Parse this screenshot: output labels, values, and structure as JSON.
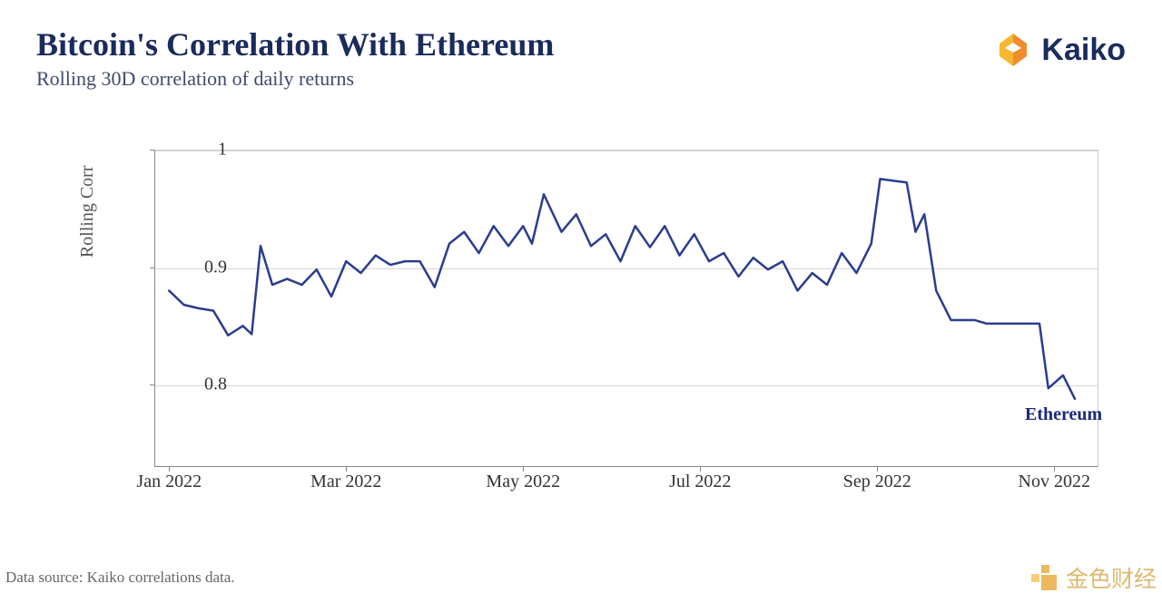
{
  "header": {
    "title": "Bitcoin's Correlation With Ethereum",
    "subtitle": "Rolling 30D correlation of daily returns",
    "logo_text": "Kaiko"
  },
  "footer": {
    "source": "Data source: Kaiko correlations data."
  },
  "watermark": {
    "text": "金色财经"
  },
  "chart": {
    "type": "line",
    "ylabel": "Rolling Corr",
    "ylim": [
      0.73,
      1.0
    ],
    "yticks": [
      0.8,
      0.9,
      1.0
    ],
    "ytick_labels": [
      "0.8",
      "0.9",
      "1"
    ],
    "xlim": [
      0,
      320
    ],
    "xticks": [
      5,
      65,
      125,
      185,
      245,
      305
    ],
    "xtick_labels": [
      "Jan 2022",
      "Mar 2022",
      "May 2022",
      "Jul 2022",
      "Sep 2022",
      "Nov 2022"
    ],
    "line_color": "#2a3d8f",
    "line_width": 2.5,
    "grid_color": "#d8d8d8",
    "background_color": "#ffffff",
    "series_label": "Ethereum",
    "series": [
      {
        "x": 5,
        "y": 0.88
      },
      {
        "x": 10,
        "y": 0.868
      },
      {
        "x": 15,
        "y": 0.865
      },
      {
        "x": 20,
        "y": 0.863
      },
      {
        "x": 25,
        "y": 0.842
      },
      {
        "x": 30,
        "y": 0.85
      },
      {
        "x": 33,
        "y": 0.843
      },
      {
        "x": 36,
        "y": 0.918
      },
      {
        "x": 40,
        "y": 0.885
      },
      {
        "x": 45,
        "y": 0.89
      },
      {
        "x": 50,
        "y": 0.885
      },
      {
        "x": 55,
        "y": 0.898
      },
      {
        "x": 60,
        "y": 0.875
      },
      {
        "x": 65,
        "y": 0.905
      },
      {
        "x": 70,
        "y": 0.895
      },
      {
        "x": 75,
        "y": 0.91
      },
      {
        "x": 80,
        "y": 0.902
      },
      {
        "x": 85,
        "y": 0.905
      },
      {
        "x": 90,
        "y": 0.905
      },
      {
        "x": 95,
        "y": 0.883
      },
      {
        "x": 100,
        "y": 0.92
      },
      {
        "x": 105,
        "y": 0.93
      },
      {
        "x": 110,
        "y": 0.912
      },
      {
        "x": 115,
        "y": 0.935
      },
      {
        "x": 120,
        "y": 0.918
      },
      {
        "x": 125,
        "y": 0.935
      },
      {
        "x": 128,
        "y": 0.92
      },
      {
        "x": 132,
        "y": 0.962
      },
      {
        "x": 138,
        "y": 0.93
      },
      {
        "x": 143,
        "y": 0.945
      },
      {
        "x": 148,
        "y": 0.918
      },
      {
        "x": 153,
        "y": 0.928
      },
      {
        "x": 158,
        "y": 0.905
      },
      {
        "x": 163,
        "y": 0.935
      },
      {
        "x": 168,
        "y": 0.917
      },
      {
        "x": 173,
        "y": 0.935
      },
      {
        "x": 178,
        "y": 0.91
      },
      {
        "x": 183,
        "y": 0.928
      },
      {
        "x": 188,
        "y": 0.905
      },
      {
        "x": 193,
        "y": 0.912
      },
      {
        "x": 198,
        "y": 0.892
      },
      {
        "x": 203,
        "y": 0.908
      },
      {
        "x": 208,
        "y": 0.898
      },
      {
        "x": 213,
        "y": 0.905
      },
      {
        "x": 218,
        "y": 0.88
      },
      {
        "x": 223,
        "y": 0.895
      },
      {
        "x": 228,
        "y": 0.885
      },
      {
        "x": 233,
        "y": 0.912
      },
      {
        "x": 238,
        "y": 0.895
      },
      {
        "x": 243,
        "y": 0.92
      },
      {
        "x": 246,
        "y": 0.975
      },
      {
        "x": 255,
        "y": 0.972
      },
      {
        "x": 258,
        "y": 0.93
      },
      {
        "x": 261,
        "y": 0.945
      },
      {
        "x": 265,
        "y": 0.88
      },
      {
        "x": 270,
        "y": 0.855
      },
      {
        "x": 278,
        "y": 0.855
      },
      {
        "x": 282,
        "y": 0.852
      },
      {
        "x": 300,
        "y": 0.852
      },
      {
        "x": 303,
        "y": 0.797
      },
      {
        "x": 308,
        "y": 0.808
      },
      {
        "x": 312,
        "y": 0.788
      }
    ]
  },
  "colors": {
    "title": "#1a2b5c",
    "subtitle": "#404a6b",
    "logo_orange": "#f08c2e",
    "logo_yellow": "#f7b733",
    "watermark_orange": "#e8a838",
    "watermark_yellow": "#f5c255"
  },
  "typography": {
    "title_fontsize": 36,
    "subtitle_fontsize": 22,
    "axis_label_fontsize": 20,
    "tick_fontsize": 20,
    "footer_fontsize": 17
  }
}
